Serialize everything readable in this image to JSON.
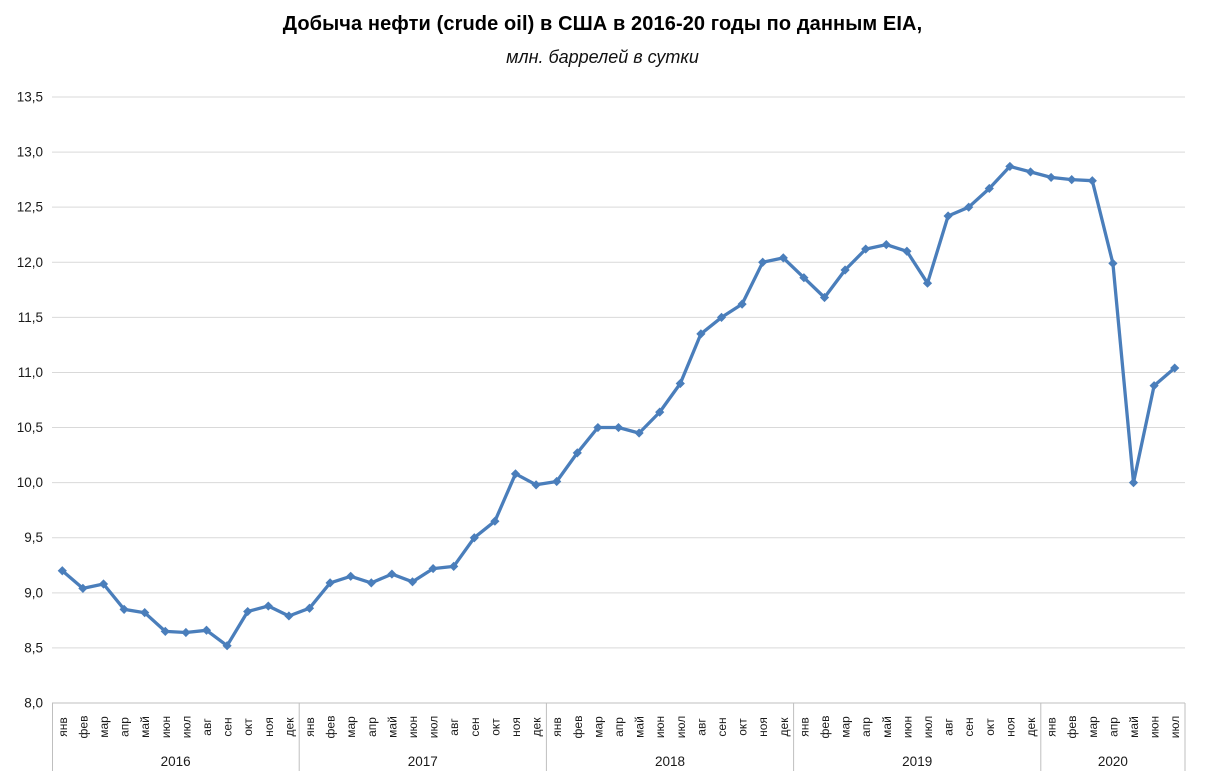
{
  "chart_data": {
    "type": "line",
    "title": "Добыча нефти (crude oil) в США в 2016-20 годы по данным EIA,",
    "subtitle": "млн. баррелей в сутки",
    "ylim": [
      8.0,
      13.5
    ],
    "ytick_step": 0.5,
    "ytick_labels": [
      "8,0",
      "8,5",
      "9,0",
      "9,5",
      "10,0",
      "10,5",
      "11,0",
      "11,5",
      "12,0",
      "12,5",
      "13,0",
      "13,5"
    ],
    "decimal_separator": ",",
    "grid": true,
    "legend_position": "none",
    "marker": "diamond",
    "colors": {
      "line": "#4A7EBB",
      "gridline": "#D9D9D9",
      "axis_line": "#BFBFBF",
      "labels": "#1A1A1A",
      "background": "#FFFFFF"
    },
    "month_names": [
      "янв",
      "фев",
      "мар",
      "апр",
      "май",
      "июн",
      "июл",
      "авг",
      "сен",
      "окт",
      "ноя",
      "дек"
    ],
    "year_groups": [
      {
        "label": "2016",
        "months": 12
      },
      {
        "label": "2017",
        "months": 12
      },
      {
        "label": "2018",
        "months": 12
      },
      {
        "label": "2019",
        "months": 12
      },
      {
        "label": "2020",
        "months": 7
      }
    ],
    "series": [
      {
        "values": [
          9.2,
          9.04,
          9.08,
          8.85,
          8.82,
          8.65,
          8.64,
          8.66,
          8.52,
          8.83,
          8.88,
          8.79,
          8.86,
          9.09,
          9.15,
          9.09,
          9.17,
          9.1,
          9.22,
          9.24,
          9.5,
          9.65,
          10.08,
          9.98,
          10.01,
          10.27,
          10.5,
          10.5,
          10.45,
          10.64,
          10.9,
          11.35,
          11.5,
          11.62,
          12.0,
          12.04,
          11.86,
          11.68,
          11.93,
          12.12,
          12.16,
          12.1,
          11.81,
          12.42,
          12.5,
          12.67,
          12.87,
          12.82,
          12.77,
          12.75,
          12.74,
          11.99,
          10.0,
          10.88,
          11.04
        ]
      }
    ]
  }
}
